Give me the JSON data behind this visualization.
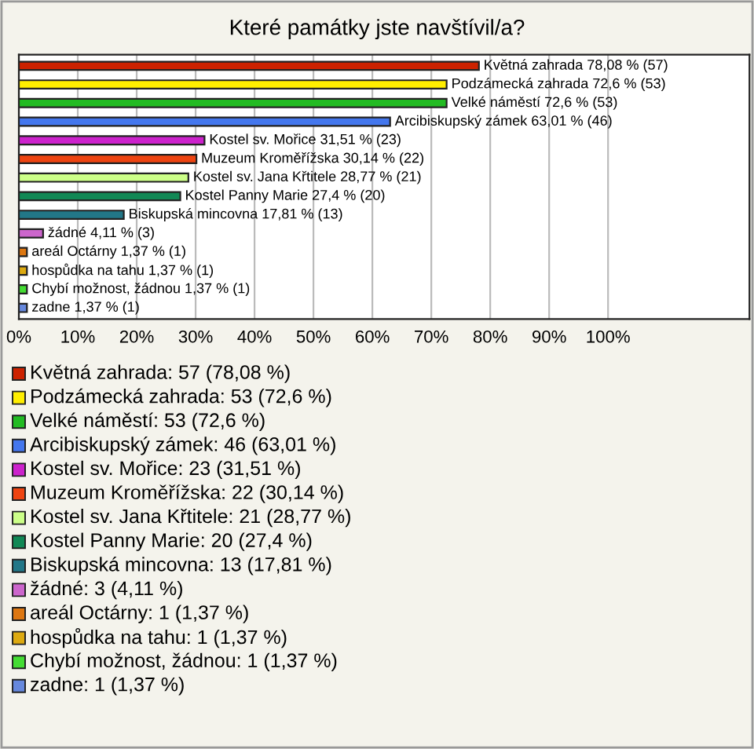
{
  "chart_data": {
    "type": "bar",
    "orientation": "horizontal",
    "title": "Které památky jste navštívil/a?",
    "categories": [
      null,
      null,
      null,
      null,
      null,
      null,
      null,
      null,
      null,
      null,
      null,
      null,
      null,
      null
    ],
    "values": [
      78.08,
      72.6,
      72.6,
      63.01,
      31.51,
      30.14,
      28.77,
      27.4,
      17.81,
      4.11,
      1.37,
      1.37,
      1.37,
      1.37
    ],
    "colors": [
      "#cc2200",
      "#ffee00",
      "#22bb22",
      "#4477ee",
      "#cc22cc",
      "#ee4411",
      "#ccff88",
      "#118855",
      "#227788",
      "#cc66cc",
      "#dd7711",
      "#ddaa11",
      "#44dd33",
      "#6688dd"
    ],
    "value_labels": [
      "Květná zahrada 78,08 % (57)",
      "Podzámecká zahrada 72,6 % (53)",
      "Velké náměstí 72,6 % (53)",
      "Arcibiskupský zámek 63,01 % (46)",
      "Kostel sv. Mořice 31,51 % (23)",
      "Muzeum Kroměřížska 30,14 % (22)",
      "Kostel sv. Jana Křtitele 28,77 % (21)",
      "Kostel Panny Marie 27,4 % (20)",
      "Biskupská mincovna 17,81 % (13)",
      "žádné 4,11 % (3)",
      "areál Octárny 1,37 % (1)",
      "hospůdka na tahu 1,37 % (1)",
      "Chybí možnost, žádnou 1,37 % (1)",
      "zadne 1,37 % (1)"
    ],
    "annotations": [
      "Květná zahrada: 57 (78,08 %)",
      "Podzámecká zahrada: 53 (72,6 %)",
      "Velké náměstí: 53 (72,6 %)",
      "Arcibiskupský zámek: 46 (63,01 %)",
      "Kostel sv. Mořice: 23 (31,51 %)",
      "Muzeum Kroměřížska: 22 (30,14 %)",
      "Kostel sv. Jana Křtitele: 21 (28,77 %)",
      "Kostel Panny Marie: 20 (27,4 %)",
      "Biskupská mincovna: 13 (17,81 %)",
      "žádné: 3 (4,11 %)",
      "areál Octárny: 1 (1,37 %)",
      "hospůdka na tahu: 1 (1,37 %)",
      "Chybí možnost, žádnou: 1 (1,37 %)",
      "zadne: 1 (1,37 %)"
    ],
    "xlim": [
      0,
      124
    ],
    "xticks": [
      {
        "value": 0,
        "label": "0%"
      },
      {
        "value": 10,
        "label": "10%"
      },
      {
        "value": 20,
        "label": "20%"
      },
      {
        "value": 30,
        "label": "30%"
      },
      {
        "value": 40,
        "label": "40%"
      },
      {
        "value": 50,
        "label": "50%"
      },
      {
        "value": 60,
        "label": "60%"
      },
      {
        "value": 70,
        "label": "70%"
      },
      {
        "value": 80,
        "label": "80%"
      },
      {
        "value": 90,
        "label": "90%"
      },
      {
        "value": 100,
        "label": "100%"
      }
    ],
    "grid": "x",
    "tick_labels": "x"
  }
}
